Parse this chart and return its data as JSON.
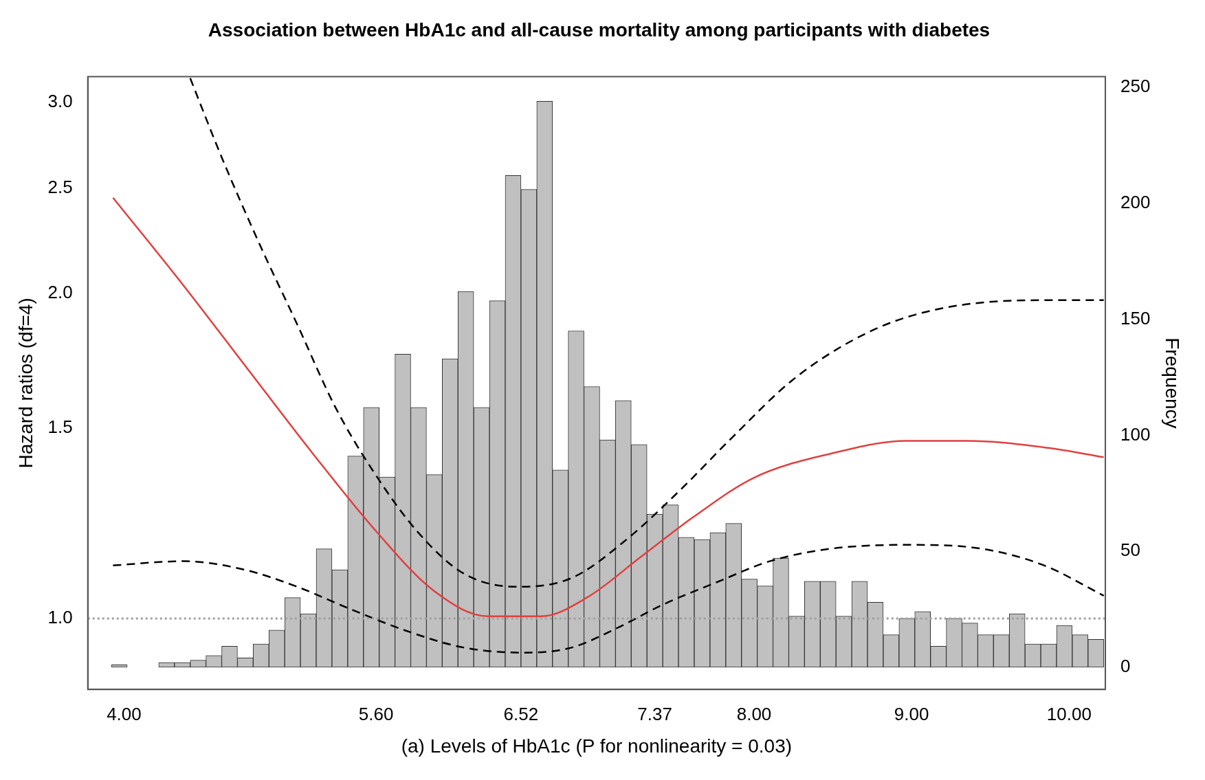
{
  "chart_data": {
    "type": "histogram",
    "title": "Association between HbA1c and all-cause mortality among participants with diabetes",
    "xlabel": "(a) Levels of HbA1c (P for nonlinearity = 0.03)",
    "ylabel": "Hazard ratios (df=4)",
    "y2label": "Frequency",
    "xlim": [
      3.77,
      10.23
    ],
    "xticks": [
      {
        "value": 4,
        "label": "4.00"
      },
      {
        "value": 5.6,
        "label": "5.60"
      },
      {
        "value": 6.52,
        "label": "6.52"
      },
      {
        "value": 7.37,
        "label": "7.37"
      },
      {
        "value": 8,
        "label": "8.00"
      },
      {
        "value": 9,
        "label": "9.00"
      },
      {
        "value": 10,
        "label": "10.00"
      }
    ],
    "ylim": [
      0.86,
      3.17
    ],
    "log": "y",
    "yticks": [
      {
        "value": 1,
        "label": "1.0"
      },
      {
        "value": 1.5,
        "label": "1.5"
      },
      {
        "value": 2,
        "label": "2.0"
      },
      {
        "value": 2.5,
        "label": "2.5"
      },
      {
        "value": 3,
        "label": "3.0"
      }
    ],
    "y2lim": [
      -9.6,
      254.6
    ],
    "y2ticks": [
      0,
      50,
      100,
      150,
      200,
      250
    ],
    "grid": false,
    "legend": false,
    "bins": [
      3.82,
      3.92,
      4.02,
      4.12,
      4.22,
      4.32,
      4.42,
      4.52,
      4.62,
      4.72,
      4.82,
      4.92,
      5.02,
      5.12,
      5.22,
      5.32,
      5.42,
      5.52,
      5.62,
      5.72,
      5.82,
      5.92,
      6.02,
      6.12,
      6.22,
      6.32,
      6.42,
      6.52,
      6.62,
      6.72,
      6.82,
      6.92,
      7.02,
      7.12,
      7.22,
      7.32,
      7.42,
      7.52,
      7.62,
      7.72,
      7.82,
      7.92,
      8.02,
      8.12,
      8.22,
      8.32,
      8.42,
      8.52,
      8.62,
      8.72,
      8.82,
      8.92,
      9.02,
      9.12,
      9.22,
      9.32,
      9.42,
      9.52,
      9.62,
      9.72,
      9.82,
      9.92,
      10.02,
      10.12,
      10.22
    ],
    "series": [
      {
        "axis": "y2",
        "color": "#c0c0c0",
        "values": [
          0,
          1,
          0,
          0,
          2,
          2,
          3,
          5,
          9,
          4,
          10,
          16,
          30,
          23,
          51,
          42,
          91,
          112,
          82,
          135,
          112,
          83,
          133,
          162,
          112,
          158,
          212,
          206,
          244,
          85,
          145,
          121,
          98,
          115,
          96,
          66,
          70,
          56,
          55,
          58,
          62,
          38,
          35,
          47,
          22,
          37,
          37,
          22,
          37,
          28,
          14,
          21,
          24,
          9,
          21,
          19,
          14,
          14,
          23,
          10,
          10,
          18,
          14,
          12
        ]
      },
      {
        "type": "line",
        "color": "#e0403f",
        "line_style": "solid",
        "x": [
          3.93,
          4.38,
          4.76,
          5.2,
          5.61,
          5.97,
          6.31,
          6.65,
          6.94,
          7.28,
          7.61,
          8.0,
          8.48,
          8.97,
          9.35,
          9.84,
          10.22
        ],
        "values": [
          2.45,
          2.03,
          1.72,
          1.42,
          1.2,
          1.06,
          1.005,
          1.005,
          1.046,
          1.14,
          1.24,
          1.35,
          1.42,
          1.46,
          1.46,
          1.44,
          1.41
        ]
      },
      {
        "type": "line",
        "color": "#000000",
        "line_style": "dashed",
        "x": [
          3.93,
          4.38,
          4.76,
          5.1,
          5.44,
          5.83,
          6.16,
          6.55,
          6.84,
          7.13,
          7.42,
          7.76,
          8.1,
          8.48,
          8.97,
          9.45,
          9.84,
          10.22
        ],
        "values": [
          1.12,
          1.13,
          1.11,
          1.07,
          1.02,
          0.97,
          0.94,
          0.93,
          0.94,
          0.98,
          1.03,
          1.08,
          1.13,
          1.16,
          1.17,
          1.16,
          1.12,
          1.05
        ]
      },
      {
        "type": "line",
        "color": "#000000",
        "line_style": "dashed",
        "x": [
          4.42,
          4.62,
          4.86,
          5.1,
          5.34,
          5.58,
          5.87,
          6.16,
          6.5,
          6.84,
          7.18,
          7.52,
          7.86,
          8.24,
          8.63,
          8.97,
          9.45,
          9.93,
          10.22
        ],
        "values": [
          3.16,
          2.67,
          2.22,
          1.87,
          1.57,
          1.37,
          1.2,
          1.1,
          1.07,
          1.09,
          1.18,
          1.31,
          1.47,
          1.66,
          1.81,
          1.9,
          1.96,
          1.97,
          1.97
        ]
      }
    ],
    "ref_lines": [
      {
        "axis": "y",
        "value": 1,
        "color": "#a0a0a0",
        "line_style": "dotted"
      }
    ]
  }
}
